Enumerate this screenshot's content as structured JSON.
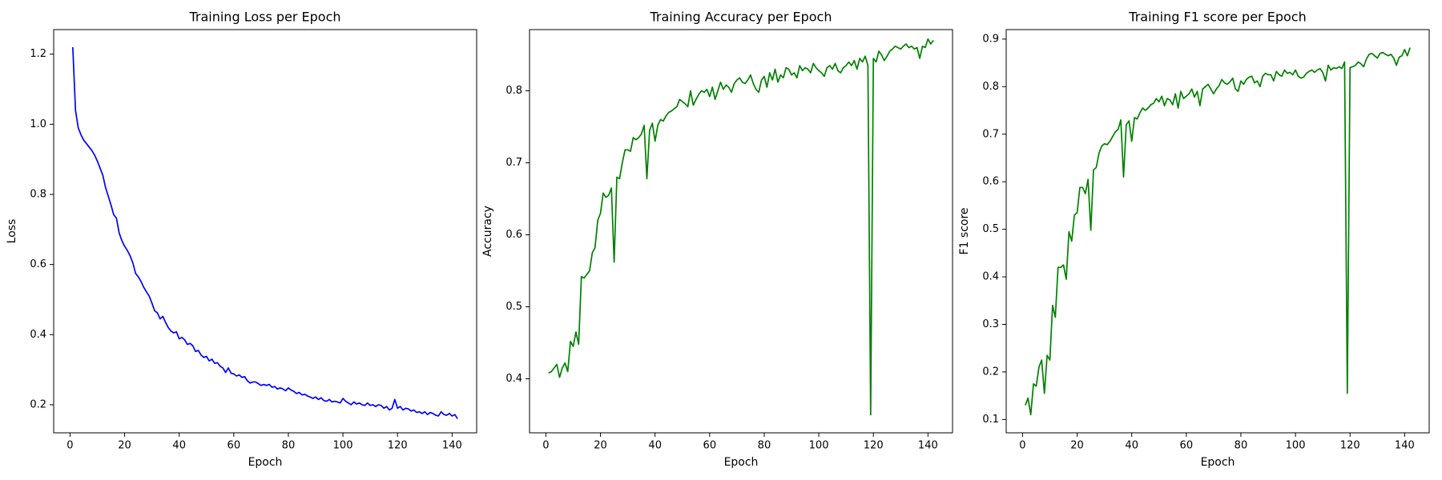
{
  "chart_data": [
    {
      "type": "line",
      "title": "Training Loss per Epoch",
      "xlabel": "Epoch",
      "ylabel": "Loss",
      "color": "#0000ff",
      "x": [
        1,
        2,
        3,
        4,
        5,
        6,
        7,
        8,
        9,
        10,
        11,
        12,
        13,
        14,
        15,
        16,
        17,
        18,
        19,
        20,
        21,
        22,
        23,
        24,
        25,
        26,
        27,
        28,
        29,
        30,
        31,
        32,
        33,
        34,
        35,
        36,
        37,
        38,
        39,
        40,
        41,
        42,
        43,
        44,
        45,
        46,
        47,
        48,
        49,
        50,
        51,
        52,
        53,
        54,
        55,
        56,
        57,
        58,
        59,
        60,
        61,
        62,
        63,
        64,
        65,
        66,
        67,
        68,
        69,
        70,
        71,
        72,
        73,
        74,
        75,
        76,
        77,
        78,
        79,
        80,
        81,
        82,
        83,
        84,
        85,
        86,
        87,
        88,
        89,
        90,
        91,
        92,
        93,
        94,
        95,
        96,
        97,
        98,
        99,
        100,
        101,
        102,
        103,
        104,
        105,
        106,
        107,
        108,
        109,
        110,
        111,
        112,
        113,
        114,
        115,
        116,
        117,
        118,
        119,
        120,
        121,
        122,
        123,
        124,
        125,
        126,
        127,
        128,
        129,
        130,
        131,
        132,
        133,
        134,
        135,
        136,
        137,
        138,
        139,
        140,
        141,
        142
      ],
      "values": [
        1.22,
        1.04,
        0.99,
        0.97,
        0.955,
        0.945,
        0.935,
        0.925,
        0.912,
        0.895,
        0.875,
        0.855,
        0.82,
        0.795,
        0.77,
        0.742,
        0.732,
        0.69,
        0.668,
        0.652,
        0.64,
        0.625,
        0.605,
        0.575,
        0.565,
        0.552,
        0.535,
        0.522,
        0.51,
        0.49,
        0.468,
        0.462,
        0.445,
        0.452,
        0.435,
        0.42,
        0.41,
        0.405,
        0.408,
        0.388,
        0.392,
        0.385,
        0.372,
        0.375,
        0.368,
        0.352,
        0.355,
        0.342,
        0.335,
        0.338,
        0.325,
        0.33,
        0.318,
        0.32,
        0.31,
        0.305,
        0.292,
        0.305,
        0.29,
        0.288,
        0.282,
        0.285,
        0.278,
        0.28,
        0.268,
        0.262,
        0.265,
        0.265,
        0.26,
        0.255,
        0.258,
        0.255,
        0.258,
        0.25,
        0.252,
        0.245,
        0.248,
        0.245,
        0.24,
        0.248,
        0.242,
        0.238,
        0.232,
        0.235,
        0.228,
        0.23,
        0.225,
        0.222,
        0.218,
        0.222,
        0.215,
        0.22,
        0.212,
        0.21,
        0.215,
        0.208,
        0.21,
        0.208,
        0.205,
        0.218,
        0.21,
        0.205,
        0.2,
        0.208,
        0.202,
        0.205,
        0.2,
        0.198,
        0.205,
        0.198,
        0.2,
        0.195,
        0.2,
        0.198,
        0.19,
        0.195,
        0.185,
        0.19,
        0.215,
        0.19,
        0.195,
        0.185,
        0.19,
        0.188,
        0.182,
        0.185,
        0.178,
        0.18,
        0.175,
        0.18,
        0.172,
        0.178,
        0.175,
        0.17,
        0.168,
        0.18,
        0.172,
        0.17,
        0.175,
        0.168,
        0.172,
        0.16
      ],
      "xlim": [
        -6,
        149
      ],
      "xticks": [
        0,
        20,
        40,
        60,
        80,
        100,
        120,
        140
      ],
      "ylim": [
        0.12,
        1.27
      ],
      "yticks": [
        0.2,
        0.4,
        0.6,
        0.8,
        {
          "value": 1,
          "label": "1.0"
        },
        1.2
      ]
    },
    {
      "type": "line",
      "title": "Training Accuracy per Epoch",
      "xlabel": "Epoch",
      "ylabel": "Accuracy",
      "color": "#008000",
      "x": [
        1,
        2,
        3,
        4,
        5,
        6,
        7,
        8,
        9,
        10,
        11,
        12,
        13,
        14,
        15,
        16,
        17,
        18,
        19,
        20,
        21,
        22,
        23,
        24,
        25,
        26,
        27,
        28,
        29,
        30,
        31,
        32,
        33,
        34,
        35,
        36,
        37,
        38,
        39,
        40,
        41,
        42,
        43,
        44,
        45,
        46,
        47,
        48,
        49,
        50,
        51,
        52,
        53,
        54,
        55,
        56,
        57,
        58,
        59,
        60,
        61,
        62,
        63,
        64,
        65,
        66,
        67,
        68,
        69,
        70,
        71,
        72,
        73,
        74,
        75,
        76,
        77,
        78,
        79,
        80,
        81,
        82,
        83,
        84,
        85,
        86,
        87,
        88,
        89,
        90,
        91,
        92,
        93,
        94,
        95,
        96,
        97,
        98,
        99,
        100,
        101,
        102,
        103,
        104,
        105,
        106,
        107,
        108,
        109,
        110,
        111,
        112,
        113,
        114,
        115,
        116,
        117,
        118,
        119,
        120,
        121,
        122,
        123,
        124,
        125,
        126,
        127,
        128,
        129,
        130,
        131,
        132,
        133,
        134,
        135,
        136,
        137,
        138,
        139,
        140,
        141,
        142
      ],
      "values": [
        0.408,
        0.41,
        0.415,
        0.42,
        0.402,
        0.415,
        0.422,
        0.41,
        0.452,
        0.445,
        0.465,
        0.448,
        0.542,
        0.54,
        0.545,
        0.55,
        0.575,
        0.582,
        0.62,
        0.63,
        0.658,
        0.652,
        0.655,
        0.665,
        0.562,
        0.68,
        0.678,
        0.7,
        0.718,
        0.718,
        0.716,
        0.735,
        0.732,
        0.735,
        0.74,
        0.752,
        0.678,
        0.745,
        0.755,
        0.73,
        0.752,
        0.76,
        0.758,
        0.765,
        0.77,
        0.772,
        0.775,
        0.778,
        0.788,
        0.785,
        0.782,
        0.778,
        0.8,
        0.78,
        0.788,
        0.795,
        0.8,
        0.798,
        0.802,
        0.792,
        0.805,
        0.788,
        0.8,
        0.812,
        0.802,
        0.808,
        0.805,
        0.798,
        0.81,
        0.815,
        0.818,
        0.812,
        0.81,
        0.815,
        0.822,
        0.81,
        0.802,
        0.798,
        0.815,
        0.82,
        0.805,
        0.825,
        0.815,
        0.83,
        0.812,
        0.822,
        0.818,
        0.832,
        0.83,
        0.822,
        0.825,
        0.818,
        0.835,
        0.828,
        0.832,
        0.83,
        0.825,
        0.838,
        0.832,
        0.828,
        0.825,
        0.82,
        0.832,
        0.835,
        0.83,
        0.838,
        0.828,
        0.825,
        0.832,
        0.835,
        0.84,
        0.835,
        0.842,
        0.83,
        0.845,
        0.84,
        0.848,
        0.835,
        0.35,
        0.845,
        0.84,
        0.855,
        0.85,
        0.842,
        0.848,
        0.855,
        0.858,
        0.862,
        0.86,
        0.858,
        0.862,
        0.865,
        0.86,
        0.862,
        0.858,
        0.86,
        0.845,
        0.862,
        0.86,
        0.872,
        0.865,
        0.87
      ],
      "xlim": [
        -6,
        149
      ],
      "xticks": [
        0,
        20,
        40,
        60,
        80,
        100,
        120,
        140
      ],
      "ylim": [
        0.325,
        0.885
      ],
      "yticks": [
        0.4,
        0.5,
        0.6,
        0.7,
        0.8
      ]
    },
    {
      "type": "line",
      "title": "Training F1 score per Epoch",
      "xlabel": "Epoch",
      "ylabel": "F1 score",
      "color": "#008000",
      "x": [
        1,
        2,
        3,
        4,
        5,
        6,
        7,
        8,
        9,
        10,
        11,
        12,
        13,
        14,
        15,
        16,
        17,
        18,
        19,
        20,
        21,
        22,
        23,
        24,
        25,
        26,
        27,
        28,
        29,
        30,
        31,
        32,
        33,
        34,
        35,
        36,
        37,
        38,
        39,
        40,
        41,
        42,
        43,
        44,
        45,
        46,
        47,
        48,
        49,
        50,
        51,
        52,
        53,
        54,
        55,
        56,
        57,
        58,
        59,
        60,
        61,
        62,
        63,
        64,
        65,
        66,
        67,
        68,
        69,
        70,
        71,
        72,
        73,
        74,
        75,
        76,
        77,
        78,
        79,
        80,
        81,
        82,
        83,
        84,
        85,
        86,
        87,
        88,
        89,
        90,
        91,
        92,
        93,
        94,
        95,
        96,
        97,
        98,
        99,
        100,
        101,
        102,
        103,
        104,
        105,
        106,
        107,
        108,
        109,
        110,
        111,
        112,
        113,
        114,
        115,
        116,
        117,
        118,
        119,
        120,
        121,
        122,
        123,
        124,
        125,
        126,
        127,
        128,
        129,
        130,
        131,
        132,
        133,
        134,
        135,
        136,
        137,
        138,
        139,
        140,
        141,
        142
      ],
      "values": [
        0.13,
        0.145,
        0.11,
        0.175,
        0.17,
        0.21,
        0.225,
        0.155,
        0.235,
        0.225,
        0.34,
        0.315,
        0.42,
        0.42,
        0.425,
        0.395,
        0.495,
        0.475,
        0.53,
        0.535,
        0.588,
        0.588,
        0.575,
        0.605,
        0.498,
        0.625,
        0.63,
        0.66,
        0.675,
        0.68,
        0.678,
        0.685,
        0.695,
        0.705,
        0.71,
        0.73,
        0.61,
        0.72,
        0.728,
        0.685,
        0.735,
        0.732,
        0.745,
        0.755,
        0.75,
        0.755,
        0.762,
        0.765,
        0.775,
        0.768,
        0.78,
        0.76,
        0.775,
        0.772,
        0.762,
        0.785,
        0.755,
        0.79,
        0.775,
        0.78,
        0.785,
        0.795,
        0.778,
        0.79,
        0.76,
        0.795,
        0.8,
        0.805,
        0.795,
        0.785,
        0.795,
        0.802,
        0.815,
        0.808,
        0.805,
        0.81,
        0.818,
        0.795,
        0.79,
        0.812,
        0.805,
        0.815,
        0.82,
        0.822,
        0.808,
        0.812,
        0.8,
        0.822,
        0.828,
        0.825,
        0.825,
        0.812,
        0.832,
        0.825,
        0.822,
        0.835,
        0.828,
        0.83,
        0.825,
        0.835,
        0.822,
        0.818,
        0.82,
        0.828,
        0.832,
        0.835,
        0.83,
        0.835,
        0.838,
        0.83,
        0.812,
        0.845,
        0.835,
        0.84,
        0.838,
        0.842,
        0.838,
        0.852,
        0.155,
        0.84,
        0.842,
        0.845,
        0.852,
        0.848,
        0.842,
        0.858,
        0.868,
        0.87,
        0.865,
        0.86,
        0.87,
        0.872,
        0.868,
        0.865,
        0.868,
        0.86,
        0.845,
        0.862,
        0.865,
        0.878,
        0.865,
        0.882
      ],
      "xlim": [
        -6,
        149
      ],
      "xticks": [
        0,
        20,
        40,
        60,
        80,
        100,
        120,
        140
      ],
      "ylim": [
        0.072,
        0.92
      ],
      "yticks": [
        0.1,
        0.2,
        0.3,
        0.4,
        0.5,
        0.6,
        0.7,
        0.8,
        0.9
      ]
    }
  ]
}
